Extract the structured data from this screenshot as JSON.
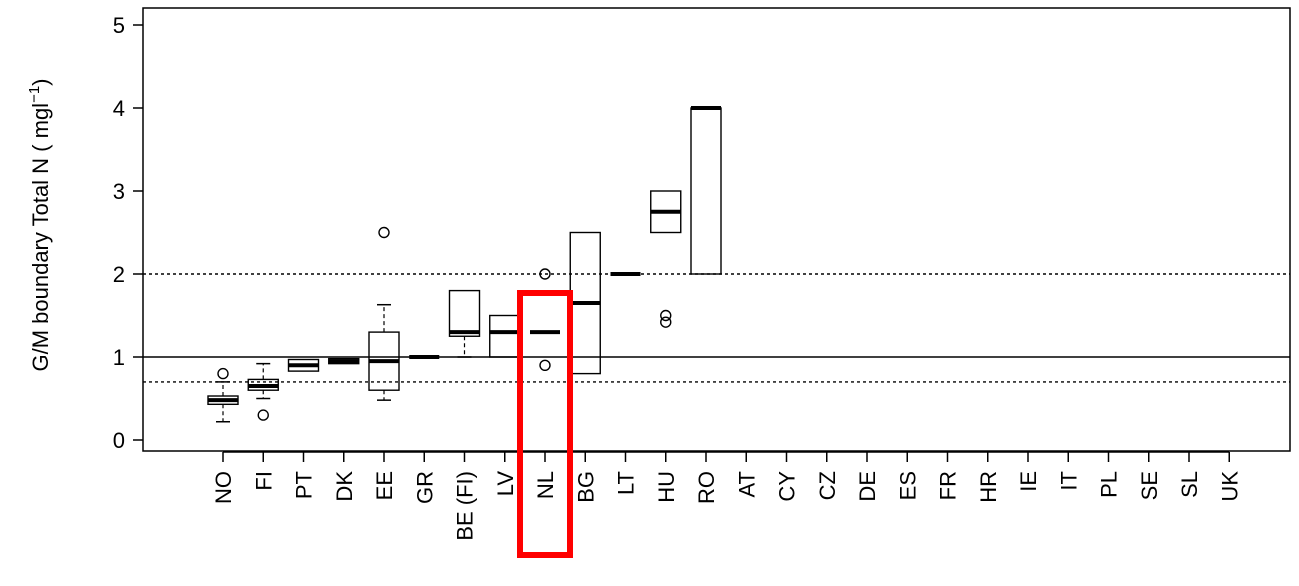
{
  "chart_data": {
    "type": "boxplot",
    "title": "",
    "ylabel": "G/M boundary Total N ( mgl",
    "ylabel_superscript": "−1",
    "ylabel_close": ")",
    "ylim": [
      0,
      5
    ],
    "yticks": [
      "0",
      "1",
      "2",
      "3",
      "4",
      "5"
    ],
    "categories": [
      "NO",
      "FI",
      "PT",
      "DK",
      "EE",
      "GR",
      "BE (FI)",
      "LV",
      "NL",
      "BG",
      "LT",
      "HU",
      "RO",
      "AT",
      "CY",
      "CZ",
      "DE",
      "ES",
      "FR",
      "HR",
      "IE",
      "IT",
      "PL",
      "SE",
      "SL",
      "UK"
    ],
    "boxes": [
      {
        "category": "NO",
        "q1": 0.43,
        "median": 0.48,
        "q3": 0.53,
        "whisker_low": 0.22,
        "whisker_high": 0.7,
        "outliers": [
          0.8
        ]
      },
      {
        "category": "FI",
        "q1": 0.6,
        "median": 0.65,
        "q3": 0.73,
        "whisker_low": 0.5,
        "whisker_high": 0.92,
        "outliers": [
          0.3
        ]
      },
      {
        "category": "PT",
        "q1": 0.83,
        "median": 0.9,
        "q3": 0.97,
        "whisker_low": 0.83,
        "whisker_high": 0.97,
        "outliers": []
      },
      {
        "category": "DK",
        "q1": 0.92,
        "median": 0.95,
        "q3": 0.98,
        "whisker_low": 0.92,
        "whisker_high": 0.98,
        "outliers": []
      },
      {
        "category": "EE",
        "q1": 0.6,
        "median": 0.95,
        "q3": 1.3,
        "whisker_low": 0.48,
        "whisker_high": 1.63,
        "outliers": [
          2.5
        ]
      },
      {
        "category": "GR",
        "q1": 1.0,
        "median": 1.0,
        "q3": 1.0,
        "whisker_low": 1.0,
        "whisker_high": 1.0,
        "outliers": []
      },
      {
        "category": "BE (FI)",
        "q1": 1.25,
        "median": 1.3,
        "q3": 1.8,
        "whisker_low": 1.0,
        "whisker_high": 1.8,
        "outliers": []
      },
      {
        "category": "LV",
        "q1": 1.0,
        "median": 1.3,
        "q3": 1.5,
        "whisker_low": 1.0,
        "whisker_high": 1.5,
        "outliers": []
      },
      {
        "category": "NL",
        "q1": 1.3,
        "median": 1.3,
        "q3": 1.3,
        "whisker_low": 1.3,
        "whisker_high": 1.3,
        "outliers": [
          2.0,
          0.9
        ]
      },
      {
        "category": "BG",
        "q1": 0.8,
        "median": 1.65,
        "q3": 2.5,
        "whisker_low": 0.8,
        "whisker_high": 2.5,
        "outliers": []
      },
      {
        "category": "LT",
        "q1": 2.0,
        "median": 2.0,
        "q3": 2.0,
        "whisker_low": 2.0,
        "whisker_high": 2.0,
        "outliers": []
      },
      {
        "category": "HU",
        "q1": 2.5,
        "median": 2.75,
        "q3": 3.0,
        "whisker_low": 2.5,
        "whisker_high": 3.0,
        "outliers": [
          1.5,
          1.42
        ]
      },
      {
        "category": "RO",
        "q1": 2.0,
        "median": 4.0,
        "q3": 4.0,
        "whisker_low": 2.0,
        "whisker_high": 4.0,
        "outliers": []
      }
    ],
    "reference_lines": [
      {
        "y": 1.0,
        "style": "solid"
      },
      {
        "y": 2.0,
        "style": "dotted"
      },
      {
        "y": 0.7,
        "style": "dotted"
      }
    ],
    "highlight": {
      "category": "NL",
      "color": "#ff0000"
    },
    "grid": false,
    "legend": "none"
  }
}
